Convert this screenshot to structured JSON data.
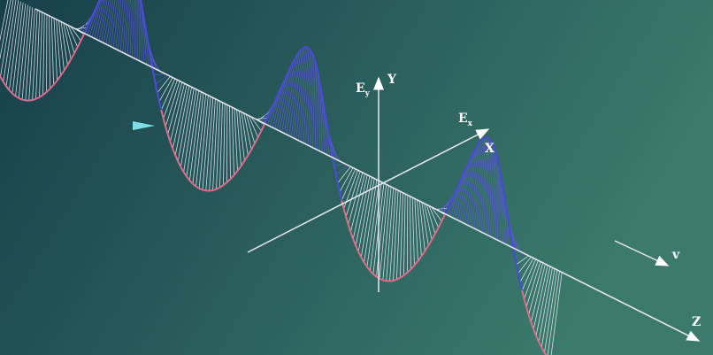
{
  "axes": {
    "y": "Y",
    "x": "X",
    "z": "Z"
  },
  "field_labels": {
    "ey": {
      "main": "E",
      "sub": "y"
    },
    "ex": {
      "main": "E",
      "sub": "x"
    }
  },
  "velocity_label": "v"
}
